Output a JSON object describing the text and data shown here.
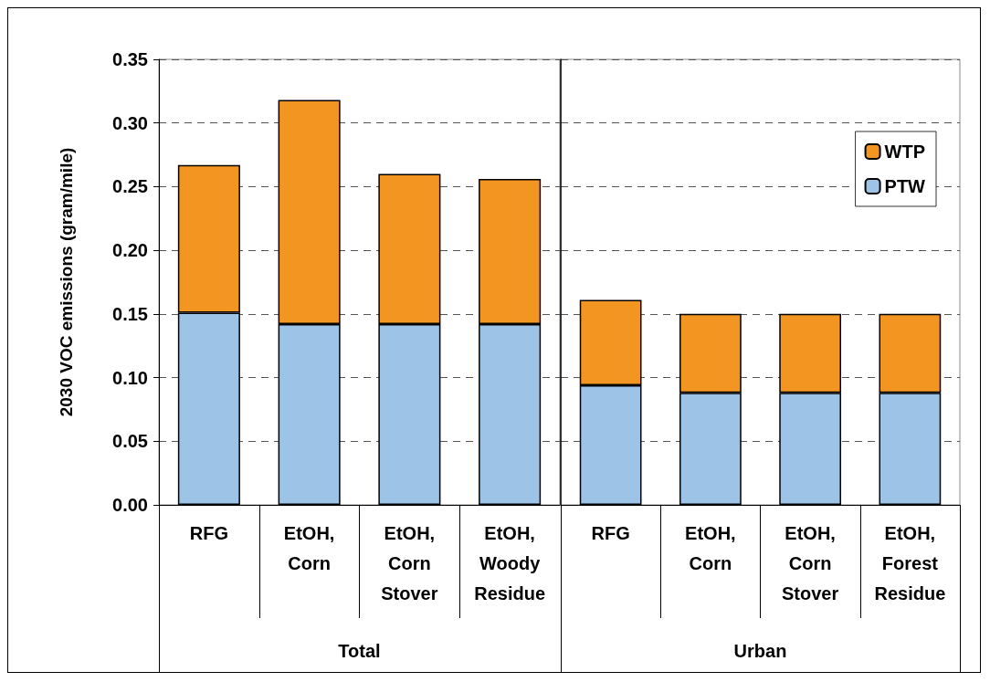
{
  "chart_data": [
    {
      "type": "bar",
      "stacked": true,
      "ylabel": "2030 VOC emissions (gram/mile)",
      "xlabel": "Total",
      "categories": [
        "RFG",
        "EtOH,\nCorn",
        "EtOH,\nCorn\nStover",
        "EtOH,\nWoody\nResidue"
      ],
      "series": [
        {
          "color": "#9dc3e6",
          "values": [
            0.151,
            0.142,
            0.142,
            0.142
          ]
        },
        {
          "color": "#f39621",
          "values": [
            0.116,
            0.176,
            0.118,
            0.114
          ]
        }
      ],
      "ylim": [
        0,
        0.35
      ],
      "yticks": [
        {
          "value": 0,
          "label": "0.00"
        },
        0.05,
        {
          "value": 0.1,
          "label": "0.10"
        },
        0.15,
        {
          "value": 0.2,
          "label": "0.20"
        },
        0.25,
        {
          "value": 0.3,
          "label": "0.30"
        },
        0.35
      ],
      "grid": "y"
    },
    {
      "type": "bar",
      "stacked": true,
      "xlabel": "Urban",
      "categories": [
        "RFG",
        "EtOH,\nCorn",
        "EtOH,\nCorn\nStover",
        "EtOH,\nForest\nResidue"
      ],
      "series": [
        {
          "name": "PTW",
          "color": "#9dc3e6",
          "values": [
            0.094,
            0.088,
            0.088,
            0.088
          ]
        },
        {
          "name": "WTP",
          "color": "#f39621",
          "values": [
            0.067,
            0.062,
            0.062,
            0.062
          ]
        }
      ],
      "ylim": [
        0,
        0.35
      ],
      "yticks": [
        0,
        0.05,
        0.1,
        0.15,
        0.2,
        0.25,
        0.3,
        0.35
      ],
      "grid": "y",
      "tick_labels": "x",
      "legend": "top right"
    }
  ]
}
